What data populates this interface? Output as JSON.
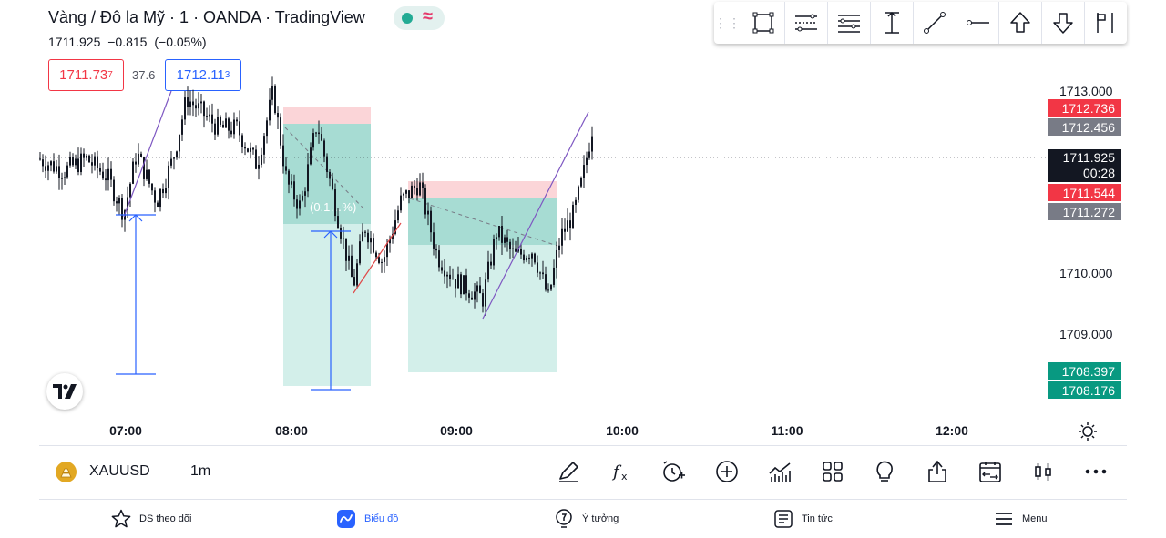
{
  "header": {
    "symbol_title": "Vàng / Đô la Mỹ · 1 · OANDA · TradingView",
    "last_price": "1711.925",
    "change": "−0.815",
    "change_pct": "(−0.05%)",
    "sell_price_main": "1711.73",
    "sell_price_sup": "7",
    "spread": "37.6",
    "buy_price_main": "1712.11",
    "buy_price_sup": "3"
  },
  "drawing_toolbar": {
    "tools": [
      "rectangle-icon",
      "fib-channel-icon",
      "pitchfork-icon",
      "price-range-icon",
      "trend-line-icon",
      "horizontal-ray-icon",
      "arrow-up-icon",
      "arrow-down-icon",
      "flag-icon"
    ]
  },
  "chart": {
    "price_axis": [
      {
        "value": "1713.000",
        "price": 1713.0
      },
      {
        "value": "1710.000",
        "price": 1710.0
      },
      {
        "value": "1709.000",
        "price": 1709.0
      }
    ],
    "price_tags": [
      {
        "value": "1712.736",
        "price": 1712.736,
        "color": "#f23645"
      },
      {
        "value": "1712.456",
        "price": 1712.456,
        "color": "#787b86"
      },
      {
        "value": "1711.925",
        "price": 1711.925,
        "color": "#131722",
        "countdown": "00:28"
      },
      {
        "value": "1711.544",
        "price": 1711.544,
        "color": "#f23645"
      },
      {
        "value": "1711.272",
        "price": 1711.272,
        "color": "#787b86"
      },
      {
        "value": "1708.397",
        "price": 1708.397,
        "color": "#089981"
      },
      {
        "value": "1708.176",
        "price": 1708.176,
        "color": "#089981"
      }
    ],
    "time_axis": [
      "07:00",
      "08:00",
      "09:00",
      "10:00",
      "11:00",
      "12:00"
    ],
    "position_label": "(0.1…%)"
  },
  "bottom_toolbar": {
    "ticker": "XAUUSD",
    "interval": "1m",
    "icons": [
      "draw-pencil-icon",
      "indicators-fx-icon",
      "alert-add-icon",
      "add-circle-icon",
      "chart-type-icon",
      "layout-grid-icon",
      "ideas-bulb-icon",
      "share-icon",
      "replay-icon",
      "candles-icon",
      "more-icon"
    ]
  },
  "nav": {
    "watchlist": "DS theo dõi",
    "chart": "Biểu đồ",
    "ideas": "Ý tưởng",
    "news": "Tin tức",
    "menu": "Menu"
  },
  "colors": {
    "up": "#089981",
    "down": "#f23645",
    "accent": "#2962ff"
  }
}
